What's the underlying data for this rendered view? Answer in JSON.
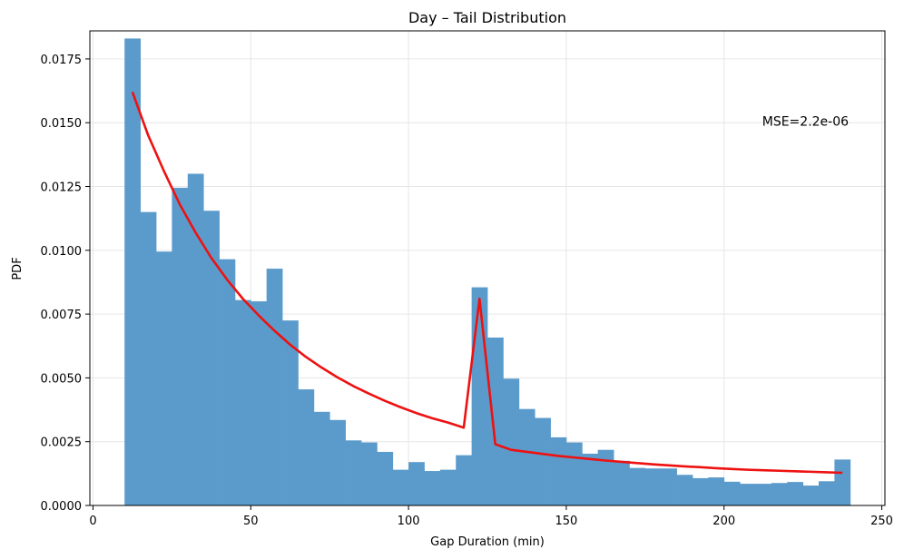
{
  "chart_data": {
    "type": "bar",
    "title": "Day – Tail Distribution",
    "xlabel": "Gap Duration (min)",
    "ylabel": "PDF",
    "xlim": [
      -1,
      251
    ],
    "ylim": [
      0,
      0.0186
    ],
    "xticks": [
      0,
      50,
      100,
      150,
      200,
      250
    ],
    "yticks": [
      0.0,
      0.0025,
      0.005,
      0.0075,
      0.01,
      0.0125,
      0.015,
      0.0175
    ],
    "ytick_labels": [
      "0.0000",
      "0.0025",
      "0.0050",
      "0.0075",
      "0.0100",
      "0.0125",
      "0.0150",
      "0.0175"
    ],
    "grid": true,
    "bar_color": "#5b9bcb",
    "histogram": {
      "bin_edges": [
        10,
        15,
        20,
        25,
        30,
        35,
        40,
        45,
        50,
        55,
        60,
        65,
        70,
        75,
        80,
        85,
        90,
        95,
        100,
        105,
        110,
        115,
        120,
        125,
        130,
        135,
        140,
        145,
        150,
        155,
        160,
        165,
        170,
        175,
        180,
        185,
        190,
        195,
        200,
        205,
        210,
        215,
        220,
        225,
        230,
        235,
        240
      ],
      "values": [
        0.0183,
        0.0115,
        0.00995,
        0.01245,
        0.013,
        0.01155,
        0.00965,
        0.00805,
        0.008,
        0.00928,
        0.00725,
        0.00455,
        0.00367,
        0.00335,
        0.00255,
        0.00247,
        0.0021,
        0.0014,
        0.0017,
        0.00135,
        0.0014,
        0.00197,
        0.00855,
        0.00658,
        0.00497,
        0.00378,
        0.00343,
        0.00267,
        0.00247,
        0.00203,
        0.00218,
        0.00175,
        0.00147,
        0.00145,
        0.00145,
        0.0012,
        0.00107,
        0.0011,
        0.00093,
        0.00085,
        0.00085,
        0.00088,
        0.00092,
        0.00078,
        0.00095,
        0.0018
      ]
    },
    "fit_line": {
      "color": "#ee1111",
      "x": [
        12.5,
        17.5,
        22.5,
        27.5,
        32.5,
        37.5,
        42.5,
        47.5,
        52.5,
        57.5,
        62.5,
        67.5,
        72.5,
        77.5,
        82.5,
        87.5,
        92.5,
        97.5,
        102.5,
        107.5,
        112.5,
        117.5,
        122.5,
        127.5,
        132.5,
        137.5,
        142.5,
        147.5,
        152.5,
        157.5,
        162.5,
        167.5,
        172.5,
        177.5,
        182.5,
        187.5,
        192.5,
        197.5,
        202.5,
        207.5,
        212.5,
        217.5,
        222.5,
        227.5,
        232.5,
        237.5
      ],
      "y": [
        0.0162,
        0.0145,
        0.0131,
        0.0118,
        0.0107,
        0.0097,
        0.00885,
        0.0081,
        0.00745,
        0.00685,
        0.0063,
        0.00582,
        0.0054,
        0.00502,
        0.00468,
        0.00438,
        0.0041,
        0.00385,
        0.00362,
        0.00342,
        0.00325,
        0.00305,
        0.0081,
        0.0024,
        0.00218,
        0.0021,
        0.00202,
        0.00194,
        0.00188,
        0.00182,
        0.00176,
        0.00171,
        0.00166,
        0.00161,
        0.00157,
        0.00153,
        0.0015,
        0.00146,
        0.00143,
        0.0014,
        0.00138,
        0.00136,
        0.00134,
        0.00132,
        0.0013,
        0.00128
      ]
    },
    "annotation": "MSE=2.2e-06",
    "annotation_position": "top-right"
  }
}
